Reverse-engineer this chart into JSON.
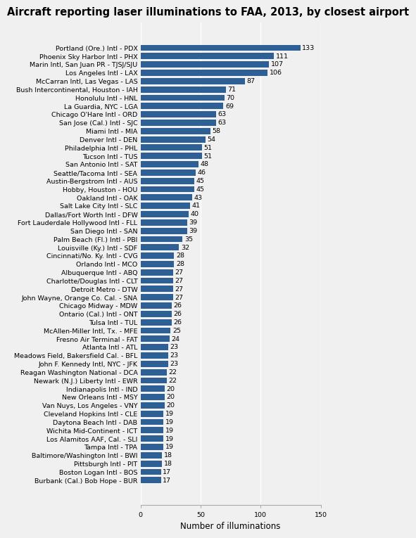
{
  "title": "Aircraft reporting laser illuminations to FAA, 2013, by closest airport",
  "xlabel": "Number of illuminations",
  "categories": [
    "Portland (Ore.) Intl - PDX",
    "Phoenix Sky Harbor Intl - PHX",
    "Marin Intl, San Juan PR - TJSJ/SJU",
    "Los Angeles Intl - LAX",
    "McCarran Intl, Las Vegas - LAS",
    "Bush Intercontinental, Houston - IAH",
    "Honolulu Intl - HNL",
    "La Guardia, NYC - LGA",
    "Chicago O'Hare Intl - ORD",
    "San Jose (Cal.) Intl - SJC",
    "Miami Intl - MIA",
    "Denver Intl - DEN",
    "Philadelphia Intl - PHL",
    "Tucson Intl - TUS",
    "San Antonio Intl - SAT",
    "Seattle/Tacoma Intl - SEA",
    "Austin-Bergstrom Intl - AUS",
    "Hobby, Houston - HOU",
    "Oakland Intl - OAK",
    "Salt Lake City Intl - SLC",
    "Dallas/Fort Worth Intl - DFW",
    "Fort Lauderdale Hollywood Intl - FLL",
    "San Diego Intl - SAN",
    "Palm Beach (Fl.) Intl - PBI",
    "Louisville (Ky.) Intl - SDF",
    "Cincinnati/No. Ky. Intl - CVG",
    "Orlando Intl - MCO",
    "Albuquerque Intl - ABQ",
    "Charlotte/Douglas Intl - CLT",
    "Detroit Metro - DTW",
    "John Wayne, Orange Co. Cal. - SNA",
    "Chicago Midway - MDW",
    "Ontario (Cal.) Intl - ONT",
    "Tulsa Intl - TUL",
    "McAllen-Miller Intl, Tx. - MFE",
    "Fresno Air Terminal - FAT",
    "Atlanta Intl - ATL",
    "Meadows Field, Bakersfield Cal. - BFL",
    "John F. Kennedy Intl, NYC - JFK",
    "Reagan Washington National - DCA",
    "Newark (N.J.) Liberty Intl - EWR",
    "Indianapolis Intl - IND",
    "New Orleans Intl - MSY",
    "Van Nuys, Los Angeles - VNY",
    "Cleveland Hopkins Intl - CLE",
    "Daytona Beach Intl - DAB",
    "Wichita Mid-Continent - ICT",
    "Los Alamitos AAF, Cal. - SLI",
    "Tampa Intl - TPA",
    "Baltimore/Washington Intl - BWI",
    "Pittsburgh Intl - PIT",
    "Boston Logan Intl - BOS",
    "Burbank (Cal.) Bob Hope - BUR"
  ],
  "values": [
    133,
    111,
    107,
    106,
    87,
    71,
    70,
    69,
    63,
    63,
    58,
    54,
    51,
    51,
    48,
    46,
    45,
    45,
    43,
    41,
    40,
    39,
    39,
    35,
    32,
    28,
    28,
    27,
    27,
    27,
    27,
    26,
    26,
    26,
    25,
    24,
    23,
    23,
    23,
    22,
    22,
    20,
    20,
    20,
    19,
    19,
    19,
    19,
    19,
    18,
    18,
    17,
    17
  ],
  "bar_color": "#2e6096",
  "label_color": "#000000",
  "background_color": "#f0f0f0",
  "plot_background_color": "#f0f0f0",
  "grid_color": "#ffffff",
  "title_fontsize": 10.5,
  "label_fontsize": 6.8,
  "value_fontsize": 6.8,
  "xlabel_fontsize": 8.5,
  "xlim": [
    0,
    150
  ],
  "xticks": [
    0,
    50,
    100,
    150
  ]
}
